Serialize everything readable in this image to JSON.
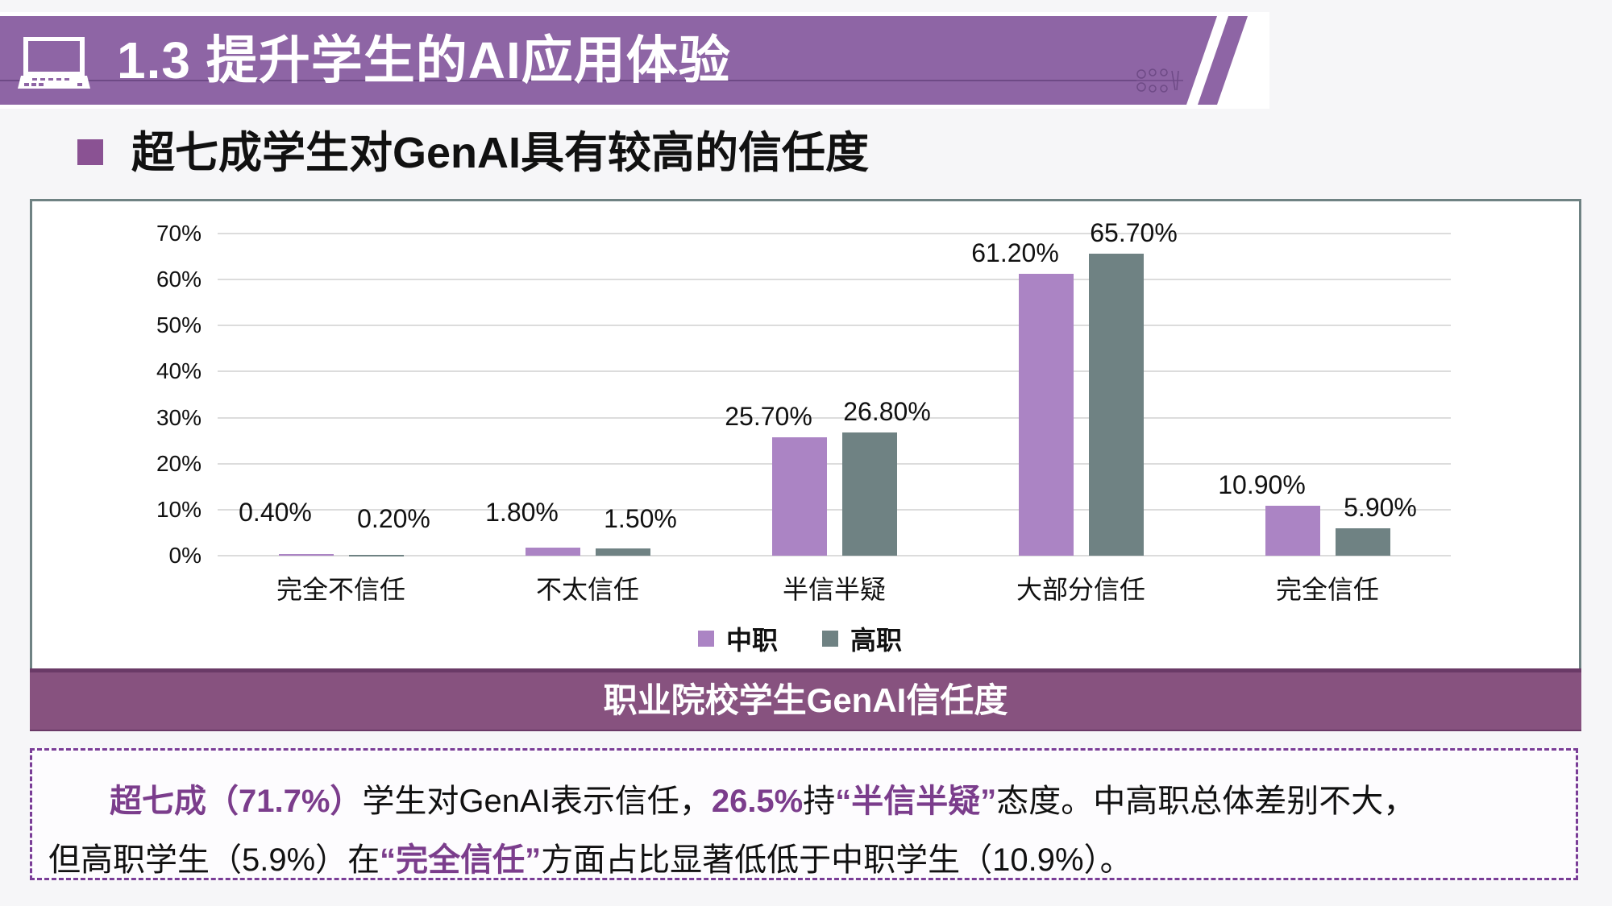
{
  "header": {
    "section_title": "1.3 提升学生的AI应用体验",
    "icon": "laptop-icon",
    "ornament": "flourish-ornament",
    "colors": {
      "band": "#8e65a5",
      "stripe": "#8e65a5"
    }
  },
  "subtitle": {
    "bullet_color": "#8a5293",
    "text": "超七成学生对GenAI具有较高的信任度"
  },
  "chart_data": {
    "type": "bar",
    "title": "职业院校学生GenAI信任度",
    "xlabel": "",
    "ylabel": "",
    "categories": [
      "完全不信任",
      "不太信任",
      "半信半疑",
      "大部分信任",
      "完全信任"
    ],
    "series": [
      {
        "name": "中职",
        "color": "#ab84c4",
        "values": [
          0.4,
          1.8,
          25.7,
          61.2,
          10.9
        ],
        "labels": [
          "0.40%",
          "1.80%",
          "25.70%",
          "61.20%",
          "10.90%"
        ]
      },
      {
        "name": "高职",
        "color": "#6f8283",
        "values": [
          0.2,
          1.5,
          26.8,
          65.7,
          5.9
        ],
        "labels": [
          "0.20%",
          "1.50%",
          "26.80%",
          "65.70%",
          "5.90%"
        ]
      }
    ],
    "yticks": [
      "0%",
      "10%",
      "20%",
      "30%",
      "40%",
      "50%",
      "60%",
      "70%"
    ],
    "ylim": [
      0,
      70
    ],
    "grid": true,
    "legend_position": "bottom",
    "unit": "%"
  },
  "caption": {
    "text": "职业院校学生GenAI信任度"
  },
  "summary": {
    "line1": [
      {
        "text": "超七成（71.7%）",
        "highlight": true
      },
      {
        "text": "学生对GenAI表示信任，",
        "highlight": false
      },
      {
        "text": "26.5%",
        "highlight": true
      },
      {
        "text": "持",
        "highlight": false
      },
      {
        "text": "“半信半疑”",
        "highlight": true
      },
      {
        "text": "态度。中高职总体差别不大，",
        "highlight": false
      }
    ],
    "line2": [
      {
        "text": "但高职学生（5.9%）在",
        "highlight": false
      },
      {
        "text": "“完全信任”",
        "highlight": true
      },
      {
        "text": "方面占比显著低低于中职学生（10.9%）。",
        "highlight": false
      }
    ],
    "highlight_color": "#7b3d8c"
  }
}
